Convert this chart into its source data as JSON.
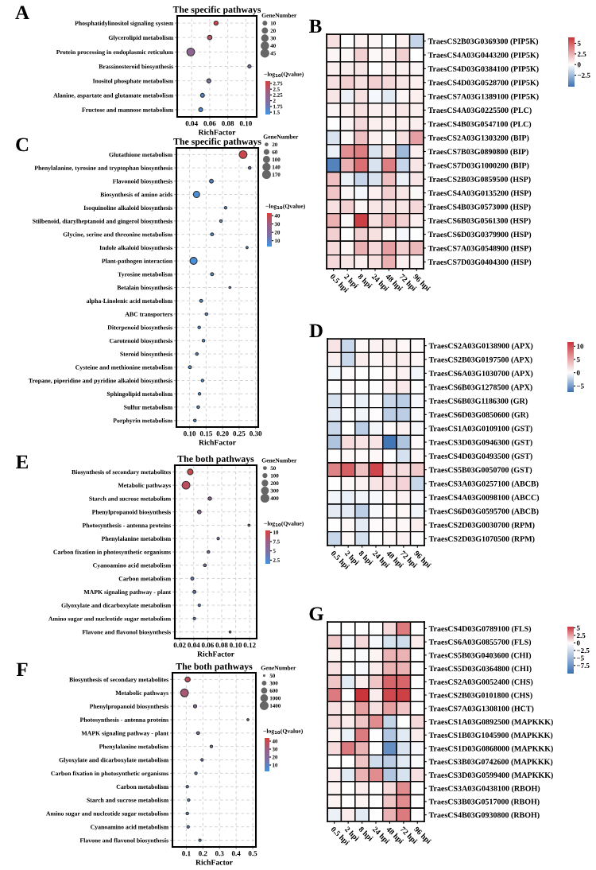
{
  "chart_data": [
    {
      "type": "bubble",
      "title": "The specific pathways",
      "xlabel": "RichFactor",
      "orientation": "horizontal",
      "annotations": [
        "A"
      ],
      "categories": [
        "Phosphatidylinositol signaling system",
        "Glycerolipid metabolism",
        "Protein processing in endoplasmic reticulum",
        "Brassinosteroid biosynthesis",
        "Inositol phosphate metabolism",
        "Alanine, aspartate and glutamate metabolism",
        "Fructose and mannose metabolism"
      ],
      "values": [
        0.067,
        0.06,
        0.039,
        0.104,
        0.059,
        0.052,
        0.05
      ],
      "sizes": [
        13,
        15,
        45,
        8,
        12,
        11,
        12
      ],
      "cvalues": [
        2.75,
        2.6,
        2.2,
        2.0,
        1.9,
        1.5,
        1.5
      ],
      "xlim": [
        0.024,
        0.112
      ],
      "xticks": [
        0.04,
        0.06,
        0.08,
        {
          "value": 0.1,
          "label": "0.10"
        }
      ],
      "legend_title": "GeneNumber",
      "size_legend": [
        10,
        20,
        30,
        40,
        45
      ],
      "clabel": "−log$_{10}$(Qvalue)",
      "clim": [
        1.4,
        2.85
      ],
      "cticks": [
        2.75,
        2.5,
        2.25,
        2,
        1.75,
        1.5
      ],
      "grid": true
    },
    {
      "type": "heatmap",
      "annotations": [
        "B"
      ],
      "categories": [
        "0.5 hpi",
        "2 hpi",
        "8 hpi",
        "24 hpi",
        "48 hpi",
        "72 hpi",
        "96 hpi"
      ],
      "y_categories": [
        "TraesCS2B03G0369300 (PIP5K)",
        "TraesCS4A03G0443200 (PIP5K)",
        "TraesCS4D03G0384100 (PIP5K)",
        "TraesCS4D03G0528700 (PIP5K)",
        "TraesCS7A03G1389100 (PIP5K)",
        "TraesCS4A03G0225500 (PLC)",
        "TraesCS4B03G0547100 (PLC)",
        "TraesCS2A03G1303200 (BIP)",
        "TraesCS7B03G0890800 (BIP)",
        "TraesCS7D03G1000200 (BIP)",
        "TraesCS2B03G0859500 (HSP)",
        "TraesCS4A03G0135200 (HSP)",
        "TraesCS4B03G0573000 (HSP)",
        "TraesCS6B03G0561300 (HSP)",
        "TraesCS6D03G0379900 (HSP)",
        "TraesCS7A03G0548900 (HSP)",
        "TraesCS7D03G0404300 (HSP)"
      ],
      "cells": [
        [
          1,
          0,
          0.5,
          0.3,
          0,
          0.5,
          -1.5
        ],
        [
          0.3,
          0.2,
          1.5,
          0.2,
          0.5,
          1.5,
          0
        ],
        [
          0.5,
          0.6,
          0.8,
          0,
          0.5,
          0.5,
          0.3
        ],
        [
          1,
          1.5,
          1,
          1.5,
          1.2,
          0.8,
          0.5
        ],
        [
          0.8,
          -0.5,
          1,
          -0.3,
          -0.8,
          0.3,
          0.5
        ],
        [
          0.3,
          0.5,
          1,
          0.5,
          0.5,
          0.8,
          0.5
        ],
        [
          0,
          0.3,
          1.2,
          0.5,
          0.5,
          0.5,
          0.5
        ],
        [
          -1,
          0.2,
          2,
          0.5,
          0.2,
          1,
          3
        ],
        [
          -0.5,
          3.5,
          4,
          -1,
          1,
          -2.5,
          0.5
        ],
        [
          -4.5,
          2.5,
          4.5,
          -1,
          4,
          -1.5,
          0.8
        ],
        [
          2,
          -0.5,
          -1.5,
          -1,
          2,
          -0.5,
          0.8
        ],
        [
          1.8,
          0.3,
          -0.3,
          0.5,
          1.5,
          0.8,
          0.2
        ],
        [
          1,
          1.5,
          0.3,
          0.8,
          1,
          0.8,
          1.2
        ],
        [
          2.5,
          0.2,
          6,
          1,
          2.5,
          1.5,
          0.5
        ],
        [
          1.5,
          0,
          1.5,
          1,
          0.2,
          -0.3,
          0
        ],
        [
          1.2,
          0.3,
          2.5,
          1.2,
          3,
          1.5,
          2.2
        ],
        [
          1.2,
          0.8,
          0.5,
          1,
          2.5,
          0.5,
          0.3
        ]
      ],
      "clim": [
        -5.2,
        6.4
      ],
      "cticks": [
        5,
        2.5,
        0,
        {
          "value": -2.5,
          "label": "−2.5"
        }
      ]
    },
    {
      "type": "bubble",
      "title": "The specific pathways",
      "xlabel": "RichFactor",
      "orientation": "horizontal",
      "annotations": [
        "C"
      ],
      "categories": [
        "Glutathione metabolism",
        "Phenylalanine, tyrosine and tryptophan biosynthesis",
        "Flavonoid biosynthesis",
        "Biosynthesis of amino acids",
        "Isoquinoline alkaloid biosynthesis",
        "Stilbenoid, diarylheptanoid and gingerol biosynthesis",
        "Glycine, serine and threonine metabolism",
        "Indole alkaloid biosynthesis",
        "Plant-pathogen interaction",
        "Tyrosine metabolism",
        "Betalain biosynthesis",
        "alpha-Linolenic acid metabolism",
        "ABC transporters",
        "Diterpenoid biosynthesis",
        "Carotenoid biosynthesis",
        "Steroid biosynthesis",
        "Cysteine and methionine metabolism",
        "Tropane, piperidine and pyridine alkaloid biosynthesis",
        "Sphingolipid metabolism",
        "Sulfur metabolism",
        "Porphyrin metabolism"
      ],
      "values": [
        0.262,
        0.282,
        0.166,
        0.121,
        0.209,
        0.195,
        0.168,
        0.274,
        0.112,
        0.168,
        0.222,
        0.135,
        0.151,
        0.129,
        0.142,
        0.122,
        0.101,
        0.139,
        0.13,
        0.126,
        0.116
      ],
      "sizes": [
        170,
        20,
        40,
        110,
        20,
        20,
        25,
        15,
        140,
        25,
        12,
        25,
        20,
        20,
        20,
        20,
        25,
        20,
        20,
        20,
        20
      ],
      "cvalues": [
        40,
        12,
        8,
        6,
        5,
        5,
        5,
        5,
        5,
        5,
        5,
        5,
        5,
        5,
        5,
        5,
        5,
        5,
        5,
        5,
        5
      ],
      "xlim": [
        0.06,
        0.308
      ],
      "xticks": [
        {
          "value": 0.1,
          "label": "0.10"
        },
        0.15,
        {
          "value": 0.2,
          "label": "0.20"
        },
        0.25,
        {
          "value": 0.3,
          "label": "0.30"
        }
      ],
      "legend_title": "GeneNumber",
      "size_legend": [
        20,
        60,
        100,
        140,
        170
      ],
      "clabel": "−log$_{10}$(Qvalue)",
      "clim": [
        3,
        43
      ],
      "cticks": [
        40,
        30,
        20,
        10
      ],
      "grid": true
    },
    {
      "type": "heatmap",
      "annotations": [
        "D"
      ],
      "categories": [
        "0.5 hpi",
        "2 hpi",
        "8 hpi",
        "24 hpi",
        "48 hpi",
        "72 hpi",
        "96 hpi"
      ],
      "y_categories": [
        "TraesCS2A03G0138900 (APX)",
        "TraesCS2B03G0197500 (APX)",
        "TraesCS6A03G1030700 (APX)",
        "TraesCS6B03G1278500 (APX)",
        "TraesCS6B03G1186300 (GR)",
        "TraesCS6D03G0850600 (GR)",
        "TraesCS1A03G0109100 (GST)",
        "TraesCS3D03G0946300 (GST)",
        "TraesCS4D03G0493500 (GST)",
        "TraesCS5B03G0050700 (GST)",
        "TraesCS3A03G0257100 (ABCB)",
        "TraesCS4A03G0098100 (ABCC)",
        "TraesCS6D03G0595700 (ABCB)",
        "TraesCS2D03G0030700 (RPM)",
        "TraesCS2D03G1070500 (RPM)"
      ],
      "cells": [
        [
          1.5,
          -2,
          0.5,
          0.8,
          1,
          0.5,
          0.3
        ],
        [
          1,
          -2,
          1,
          0.5,
          1,
          1,
          0.5
        ],
        [
          -0.5,
          0.3,
          0,
          0,
          0.5,
          0.8,
          -0.5
        ],
        [
          0,
          0.3,
          0,
          0,
          0.8,
          1.2,
          0
        ],
        [
          -1.5,
          0.2,
          -0.8,
          0.2,
          -2,
          -2.5,
          -0.3
        ],
        [
          -1,
          0,
          -0.5,
          0.2,
          -2.5,
          -2.5,
          -0.2
        ],
        [
          -2,
          0,
          -2.5,
          -0.5,
          0.3,
          0.8,
          -0.3
        ],
        [
          -3,
          2,
          1.5,
          1.5,
          -7,
          -3,
          0.3
        ],
        [
          0,
          0.5,
          0.3,
          0.5,
          0,
          -1.5,
          0.5
        ],
        [
          7,
          9,
          3.5,
          10.5,
          2,
          2,
          3
        ],
        [
          0,
          0.5,
          0.8,
          1.5,
          2,
          2.5,
          -2
        ],
        [
          -0.5,
          -0.8,
          -0.5,
          -0.3,
          0.3,
          0.8,
          -0.3
        ],
        [
          -1,
          -1,
          -2.5,
          -0.3,
          0.3,
          0.5,
          -0.5
        ],
        [
          0,
          0.5,
          -1,
          0.3,
          0.5,
          0.5,
          1
        ],
        [
          -2,
          0.5,
          -1.5,
          0,
          0.5,
          0.8,
          0.2
        ]
      ],
      "clim": [
        -7.3,
        11.6
      ],
      "cticks": [
        10,
        5,
        0,
        {
          "value": -5,
          "label": "−5"
        }
      ]
    },
    {
      "type": "bubble",
      "title": "The both pathways",
      "xlabel": "RichFactor",
      "orientation": "horizontal",
      "annotations": [
        "E"
      ],
      "categories": [
        "Biosynthesis of secondary metabolites",
        "Metabolic pathways",
        "Starch and sucrose metabolism",
        "Phenylpropanoid biosynthesis",
        "Photosynthesis - antenna proteins",
        "Phenylalanine metabolism",
        "Carbon fixation in photosynthetic organisms",
        "Cyanoamino acid metabolism",
        "Carbon metabolism",
        "MAPK signaling pathway - plant",
        "Glyoxylate and dicarboxylate metabolism",
        "Amino sugar and nucleotide sugar metabolism",
        "Flavone and flavonol biosynthesis"
      ],
      "values": [
        0.035,
        0.029,
        0.063,
        0.048,
        0.119,
        0.075,
        0.061,
        0.056,
        0.038,
        0.041,
        0.048,
        0.041,
        0.092
      ],
      "sizes": [
        200,
        400,
        80,
        90,
        30,
        40,
        50,
        50,
        60,
        60,
        40,
        40,
        25
      ],
      "cvalues": [
        10,
        9,
        6,
        6,
        5,
        4,
        4,
        4,
        3,
        3,
        3,
        3,
        3
      ],
      "xlim": [
        0.013,
        0.13
      ],
      "xticks": [
        0.02,
        0.04,
        0.06,
        0.08,
        {
          "value": 0.1,
          "label": "0.10"
        },
        0.12
      ],
      "legend_title": "GeneNumber",
      "size_legend": [
        50,
        100,
        200,
        300,
        400
      ],
      "clabel": "−log$_{10}$(Qvalue)",
      "clim": [
        1.5,
        10.5
      ],
      "cticks": [
        10,
        7.5,
        5,
        2.5
      ],
      "grid": true
    },
    {
      "type": "bubble",
      "title": "The both pathways",
      "xlabel": "RichFactor",
      "orientation": "horizontal",
      "annotations": [
        "F"
      ],
      "categories": [
        "Biosynthesis of secondary metabolites",
        "Metabolic pathways",
        "Phenylpropanoid biosynthesis",
        "Photosynthesis - antenna proteins",
        "MAPK signaling pathway - plant",
        "Phenylalanine metabolism",
        "Glyoxylate and dicarboxylate metabolism",
        "Carbon fixation in photosynthetic organisms",
        "Carbon metabolism",
        "Starch and sucrose metabolism",
        "Amino sugar and nucleotide sugar metabolism",
        "Cyanoamino acid metabolism",
        "Flavone and flavonol biosynthesis"
      ],
      "values": [
        0.108,
        0.089,
        0.153,
        0.471,
        0.171,
        0.251,
        0.195,
        0.158,
        0.106,
        0.114,
        0.106,
        0.111,
        0.182
      ],
      "sizes": [
        600,
        1400,
        250,
        100,
        200,
        150,
        150,
        150,
        150,
        150,
        150,
        150,
        150
      ],
      "cvalues": [
        38,
        33,
        22,
        18,
        17,
        17,
        12,
        10,
        8,
        8,
        8,
        8,
        8
      ],
      "xlim": [
        0.0165,
        0.519
      ],
      "xticks": [
        0.1,
        0.2,
        0.3,
        0.4,
        0.5
      ],
      "legend_title": "GeneNumber",
      "size_legend": [
        50,
        300,
        600,
        1000,
        1400
      ],
      "clabel": "−log$_{10}$(Qvalue)",
      "clim": [
        2,
        44
      ],
      "cticks": [
        40,
        30,
        20,
        10
      ],
      "grid": true
    },
    {
      "type": "heatmap",
      "annotations": [
        "G"
      ],
      "categories": [
        "0.5 hpi",
        "2 hpi",
        "8 hpi",
        "24 hpi",
        "48 hpi",
        "72 hpi",
        "96 hpi"
      ],
      "y_categories": [
        "TraesCS4D03G0789100 (FLS)",
        "TraesCS6A03G0855700 (FLS)",
        "TraesCS5B03G0403600 (CHI)",
        "TraesCS5D03G0364800 (CHI)",
        "TraesCS2A03G0052400 (CHS)",
        "TraesCS2B03G0101800 (CHS)",
        "TraesCS7A03G1308100 (HCT)",
        "TraesCS1A03G0892500 (MAPKKK)",
        "TraesCS1B03G1045900 (MAPKKK)",
        "TraesCS1D03G0868000 (MAPKKK)",
        "TraesCS3B03G0742600 (MAPKKK)",
        "TraesCS3D03G0599400 (MAPKKK)",
        "TraesCS3A03G0438100 (RBOH)",
        "TraesCS3B03G0517000 (RBOH)",
        "TraesCS4B03G0930800 (RBOH)"
      ],
      "cells": [
        [
          0,
          0,
          0,
          0,
          1,
          3.5,
          0
        ],
        [
          1.5,
          -0.5,
          1,
          -0.5,
          -2,
          -2.5,
          0.5
        ],
        [
          0.3,
          0,
          -0.3,
          0.3,
          2,
          2,
          0
        ],
        [
          0.8,
          0,
          -0.5,
          0.5,
          2,
          2,
          0
        ],
        [
          1.5,
          -1.5,
          0.5,
          1.5,
          4,
          4,
          0
        ],
        [
          3.5,
          0,
          5.3,
          0.5,
          4.8,
          5,
          0
        ],
        [
          0.8,
          0.3,
          2.5,
          0.8,
          2.5,
          1.5,
          0
        ],
        [
          1,
          0.5,
          1.5,
          3,
          -3,
          0,
          1
        ],
        [
          0.3,
          -1,
          3.5,
          0,
          -4,
          -1.5,
          0.5
        ],
        [
          1,
          3.5,
          2,
          0,
          -8,
          -2,
          -0.5
        ],
        [
          0,
          0,
          1.5,
          -2.5,
          -3.5,
          -1.5,
          -0.3
        ],
        [
          0.5,
          -1.5,
          2,
          3,
          -4,
          -2,
          0.8
        ],
        [
          0.3,
          0,
          0.5,
          0,
          1,
          3,
          0
        ],
        [
          0.3,
          0,
          0.3,
          0,
          1.5,
          3,
          0
        ],
        [
          -1,
          0.5,
          -1.5,
          0,
          2,
          3.5,
          0
        ]
      ],
      "clim": [
        -10.2,
        5.4
      ],
      "cticks": [
        5,
        2.5,
        0,
        {
          "value": -2.5,
          "label": "−2.5"
        },
        {
          "value": -5,
          "label": "−5"
        },
        {
          "value": -7.5,
          "label": "−7.5"
        }
      ]
    }
  ]
}
